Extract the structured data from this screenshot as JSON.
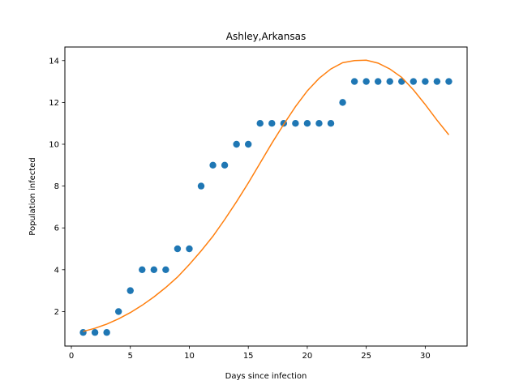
{
  "chart_data": {
    "type": "scatter",
    "title": "Ashley,Arkansas",
    "xlabel": "Days since infection",
    "ylabel": "Population infected",
    "xlim": [
      -0.55,
      33.55
    ],
    "ylim": [
      0.35,
      14.65
    ],
    "xticks": [
      0,
      5,
      10,
      15,
      20,
      25,
      30
    ],
    "yticks": [
      2,
      4,
      6,
      8,
      10,
      12,
      14
    ],
    "grid": false,
    "legend": "none",
    "series": [
      {
        "kind": "scatter",
        "color": "#1f77b4",
        "x": [
          1,
          2,
          3,
          4,
          5,
          6,
          7,
          8,
          9,
          10,
          11,
          12,
          13,
          14,
          15,
          16,
          17,
          18,
          19,
          20,
          21,
          22,
          23,
          24,
          25,
          26,
          27,
          28,
          29,
          30,
          31,
          32
        ],
        "y": [
          1,
          1,
          1,
          2,
          3,
          4,
          4,
          4,
          5,
          5,
          8,
          9,
          9,
          10,
          10,
          11,
          11,
          11,
          11,
          11,
          11,
          11,
          12,
          13,
          13,
          13,
          13,
          13,
          13,
          13,
          13,
          13
        ]
      },
      {
        "kind": "line",
        "color": "#ff7f0e",
        "x": [
          1,
          2,
          3,
          4,
          5,
          6,
          7,
          8,
          9,
          10,
          11,
          12,
          13,
          14,
          15,
          16,
          17,
          18,
          19,
          20,
          21,
          22,
          23,
          24,
          25,
          26,
          27,
          28,
          29,
          30,
          31,
          32
        ],
        "y": [
          1.05,
          1.2,
          1.4,
          1.65,
          1.95,
          2.3,
          2.7,
          3.15,
          3.65,
          4.25,
          4.9,
          5.6,
          6.4,
          7.25,
          8.15,
          9.1,
          10.05,
          10.95,
          11.8,
          12.55,
          13.15,
          13.6,
          13.9,
          14.0,
          14.02,
          13.88,
          13.6,
          13.2,
          12.6,
          11.9,
          11.15,
          10.45
        ]
      }
    ]
  }
}
